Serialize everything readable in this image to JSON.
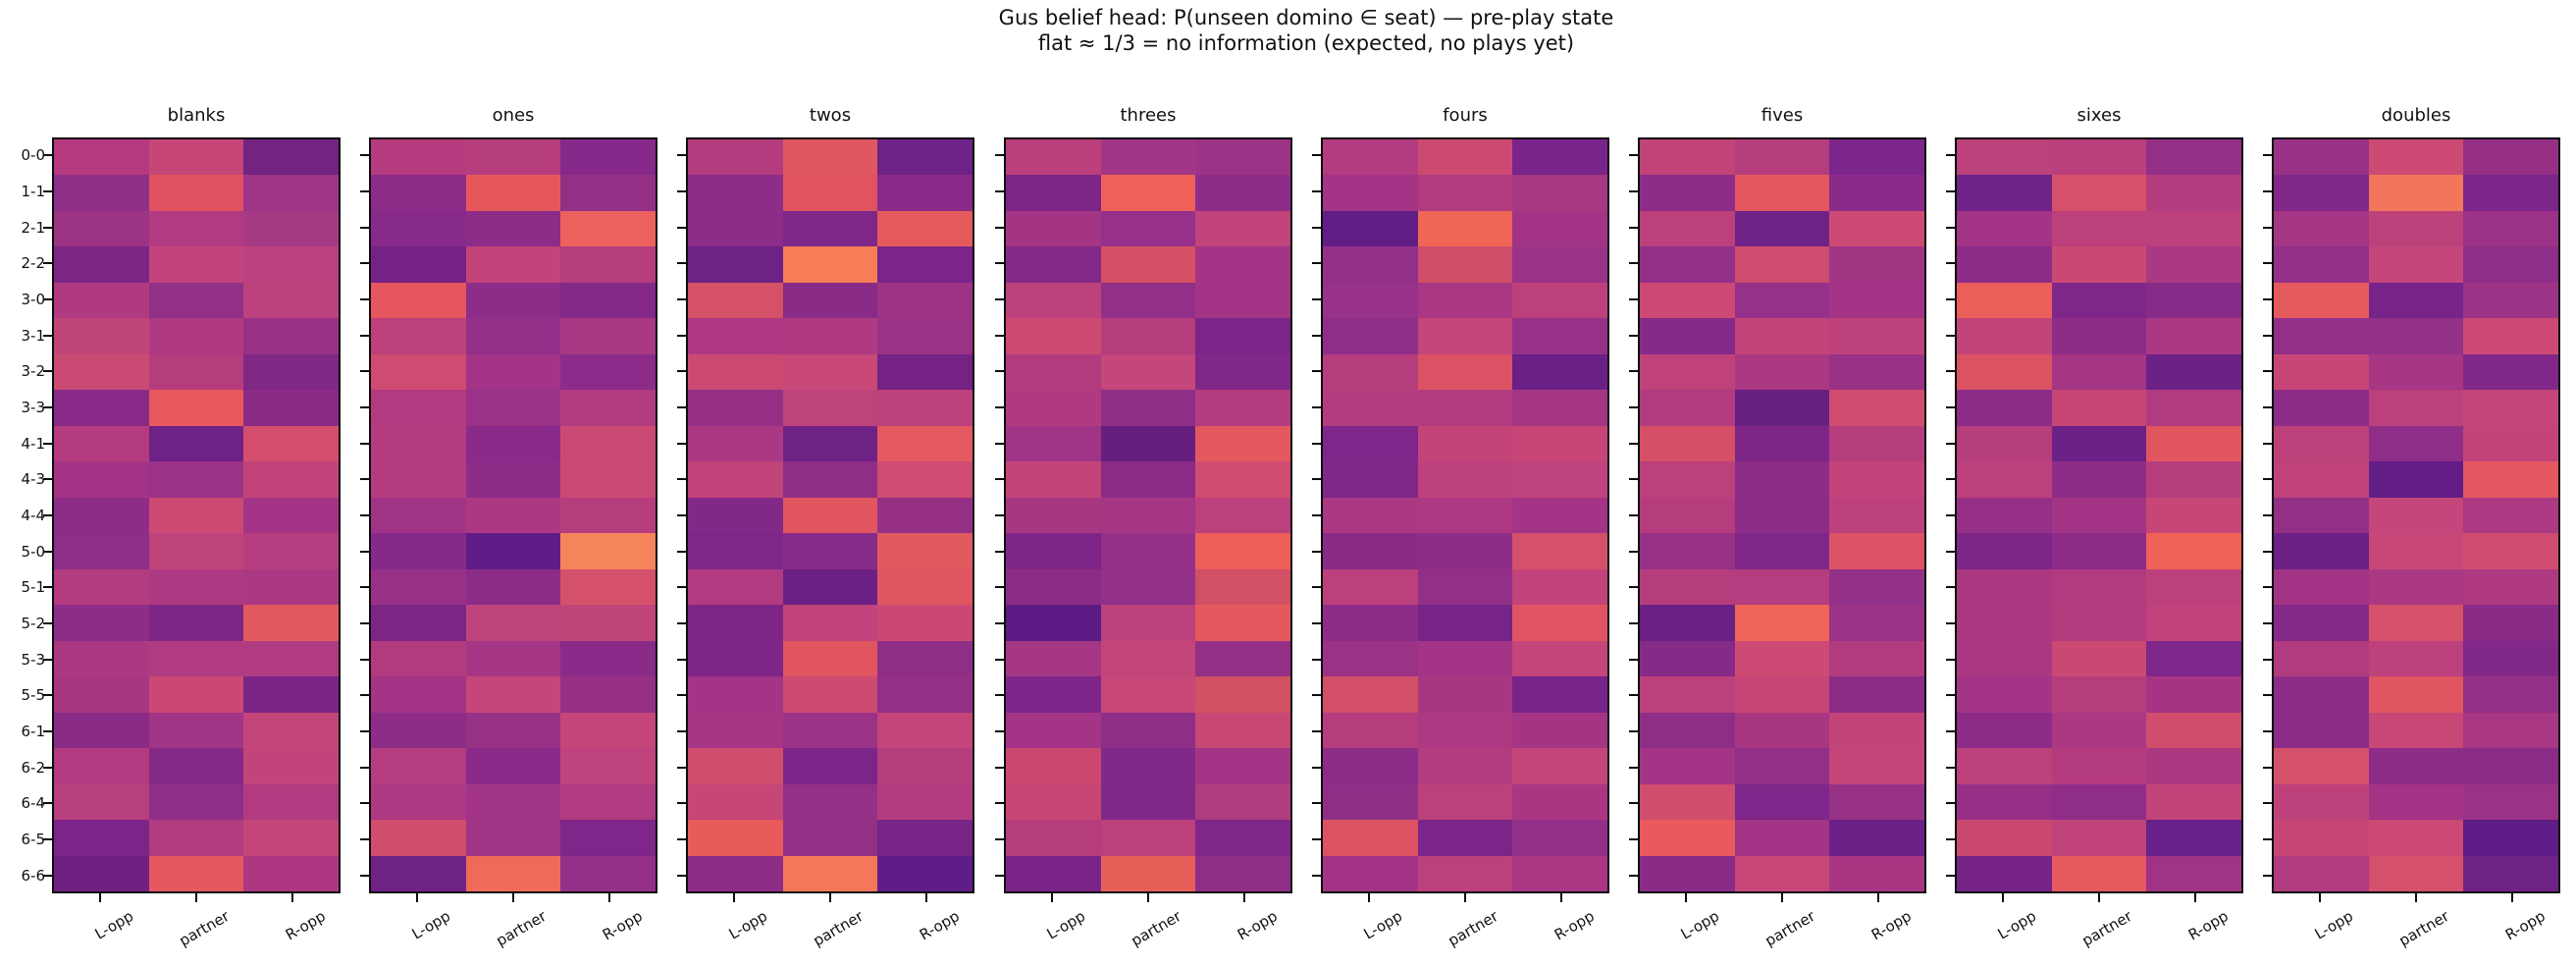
{
  "chart_data": {
    "type": "heatmap",
    "title": "Gus belief head: P(unseen domino ∈ seat) — pre-play state",
    "subtitle": "flat ≈ 1/3 = no information (expected, no plays yet)",
    "colormap": "plasma",
    "value_encoding": "probability encoded by cell color only; no colorbar shown; values all near 1/3",
    "rows": [
      "0-0",
      "1-1",
      "2-1",
      "2-2",
      "3-0",
      "3-1",
      "3-2",
      "3-3",
      "4-1",
      "4-3",
      "4-4",
      "5-0",
      "5-1",
      "5-2",
      "5-3",
      "5-5",
      "6-1",
      "6-2",
      "6-4",
      "6-5",
      "6-6"
    ],
    "cols": [
      "L-opp",
      "partner",
      "R-opp"
    ],
    "panels": [
      {
        "title": "blanks",
        "cells": [
          [
            "#b5397f",
            "#c74678",
            "#732481"
          ],
          [
            "#8f2f88",
            "#e05261",
            "#a03487"
          ],
          [
            "#9c3384",
            "#b23a80",
            "#a63a85"
          ],
          [
            "#7c2583",
            "#c2437b",
            "#bb4180"
          ],
          [
            "#b03a82",
            "#922f87",
            "#bc427e"
          ],
          [
            "#c04579",
            "#af3a81",
            "#993186"
          ],
          [
            "#c94b74",
            "#b53d7e",
            "#7f2886"
          ],
          [
            "#8a2a88",
            "#e8585c",
            "#8a2a87"
          ],
          [
            "#b43b7f",
            "#6e2187",
            "#d44d6c"
          ],
          [
            "#a33485",
            "#9b3287",
            "#c24379"
          ],
          [
            "#8e2d88",
            "#cc4a72",
            "#a33485"
          ],
          [
            "#8e2e88",
            "#bf437b",
            "#b53c7e"
          ],
          [
            "#b33b7f",
            "#ad3982",
            "#ab3883"
          ],
          [
            "#8d2d88",
            "#7d2685",
            "#e25a5e"
          ],
          [
            "#ab3883",
            "#b13b81",
            "#b13b81"
          ],
          [
            "#a83781",
            "#ca4873",
            "#7a2586"
          ],
          [
            "#8a2b88",
            "#a13486",
            "#c4457a"
          ],
          [
            "#b23a80",
            "#842a86",
            "#c3447a"
          ],
          [
            "#b83f7d",
            "#8e2e88",
            "#b23a81"
          ],
          [
            "#7c2487",
            "#b23c80",
            "#c44579"
          ],
          [
            "#6e2181",
            "#e5585f",
            "#ad3781"
          ]
        ]
      },
      {
        "title": "ones",
        "cells": [
          [
            "#b53b7e",
            "#b63d7e",
            "#86298a"
          ],
          [
            "#8c2c89",
            "#e6575c",
            "#933085"
          ],
          [
            "#872a8a",
            "#8c2c88",
            "#ec615e"
          ],
          [
            "#742385",
            "#c2447a",
            "#b53d7e"
          ],
          [
            "#e6565e",
            "#8e2d89",
            "#852988"
          ],
          [
            "#bc417b",
            "#93308a",
            "#a83784"
          ],
          [
            "#ce4c72",
            "#a33488",
            "#8c2b8a"
          ],
          [
            "#b13a80",
            "#9b3287",
            "#b23b80"
          ],
          [
            "#b23c7f",
            "#8a2a8a",
            "#cb4a74"
          ],
          [
            "#b23c7f",
            "#8e2d89",
            "#cb4a74"
          ],
          [
            "#a03386",
            "#ad3882",
            "#b63d7d"
          ],
          [
            "#862a89",
            "#5f1d87",
            "#f4845a"
          ],
          [
            "#983186",
            "#8c2c89",
            "#d5506a"
          ],
          [
            "#7b2685",
            "#bf437b",
            "#c04579"
          ],
          [
            "#b23b80",
            "#a53685",
            "#8b2b89"
          ],
          [
            "#a33486",
            "#c4467a",
            "#963085"
          ],
          [
            "#8d2d87",
            "#963186",
            "#c4457a"
          ],
          [
            "#b43c7f",
            "#8b2b89",
            "#bf437c"
          ],
          [
            "#ad3982",
            "#a13486",
            "#b13b80"
          ],
          [
            "#d14d6e",
            "#a13485",
            "#7e2689"
          ],
          [
            "#6f2286",
            "#ef6b57",
            "#95308a"
          ]
        ]
      },
      {
        "title": "twos",
        "cells": [
          [
            "#b43c7e",
            "#e15760",
            "#6e2186"
          ],
          [
            "#8e2d89",
            "#e05460",
            "#892a88"
          ],
          [
            "#8d2c89",
            "#7f2789",
            "#e65a5d"
          ],
          [
            "#6f2286",
            "#f67d56",
            "#7c2489"
          ],
          [
            "#d55165",
            "#8a2b88",
            "#9e3386"
          ],
          [
            "#ae3982",
            "#b03a81",
            "#9b3286"
          ],
          [
            "#cc4a72",
            "#c84878",
            "#742384"
          ],
          [
            "#963085",
            "#bf437b",
            "#bd417c"
          ],
          [
            "#aa3883",
            "#6f2285",
            "#e55960"
          ],
          [
            "#c0437a",
            "#8e2e87",
            "#cf4b72"
          ],
          [
            "#822988",
            "#e05560",
            "#963085"
          ],
          [
            "#7f2789",
            "#882a89",
            "#e15a5e"
          ],
          [
            "#b23a80",
            "#6c2086",
            "#df5560"
          ],
          [
            "#7c2587",
            "#c0447b",
            "#cc4874"
          ],
          [
            "#7e2688",
            "#e0555f",
            "#8f2e87"
          ],
          [
            "#a33486",
            "#cd4a73",
            "#933085"
          ],
          [
            "#a63685",
            "#9c3286",
            "#c4457a"
          ],
          [
            "#d04d6e",
            "#7c2588",
            "#b53d7e"
          ],
          [
            "#c64677",
            "#943085",
            "#b43c7e"
          ],
          [
            "#e85b5b",
            "#933085",
            "#762486"
          ],
          [
            "#8d2c87",
            "#f4775a",
            "#5f1d87"
          ]
        ]
      },
      {
        "title": "threes",
        "cells": [
          [
            "#bb3f7c",
            "#a33586",
            "#9c3387"
          ],
          [
            "#7c2587",
            "#ee6158",
            "#8e2d88"
          ],
          [
            "#a43585",
            "#97308a",
            "#c1447a"
          ],
          [
            "#842988",
            "#d55064",
            "#a33486"
          ],
          [
            "#bd417b",
            "#923089",
            "#a43486"
          ],
          [
            "#cc4971",
            "#b53d7e",
            "#7b2588"
          ],
          [
            "#b23b80",
            "#c4467a",
            "#812789"
          ],
          [
            "#b03a80",
            "#8e2e87",
            "#b43c7e"
          ],
          [
            "#a13486",
            "#65207f",
            "#e5585f"
          ],
          [
            "#c24479",
            "#8c2c87",
            "#d04c70"
          ],
          [
            "#a83782",
            "#a53685",
            "#bb407b"
          ],
          [
            "#7e2688",
            "#943089",
            "#ed5e59"
          ],
          [
            "#8d2c87",
            "#933089",
            "#d25064"
          ],
          [
            "#5c1a84",
            "#bc417c",
            "#e5585e"
          ],
          [
            "#a53684",
            "#c3457a",
            "#933086"
          ],
          [
            "#7e2589",
            "#c64778",
            "#d25162"
          ],
          [
            "#a33486",
            "#8f2e87",
            "#c84875"
          ],
          [
            "#cb4971",
            "#822888",
            "#a33486"
          ],
          [
            "#c64574",
            "#822888",
            "#b03d80"
          ],
          [
            "#b53d7e",
            "#bb407c",
            "#7f2689"
          ],
          [
            "#7a2488",
            "#e75f59",
            "#8e2e87"
          ]
        ]
      },
      {
        "title": "fours",
        "cells": [
          [
            "#b23c7f",
            "#cc4a72",
            "#78248a"
          ],
          [
            "#a33486",
            "#b23b80",
            "#a83784"
          ],
          [
            "#611e86",
            "#ef6656",
            "#a33485"
          ],
          [
            "#933089",
            "#d04e6a",
            "#9a3288"
          ],
          [
            "#973189",
            "#a93784",
            "#bc407b"
          ],
          [
            "#8f2e89",
            "#c4457a",
            "#963187"
          ],
          [
            "#b53d7e",
            "#db5264",
            "#6b2088"
          ],
          [
            "#b33c7f",
            "#b23b80",
            "#a53685"
          ],
          [
            "#7e2689",
            "#c34479",
            "#c74677"
          ],
          [
            "#812789",
            "#bc417c",
            "#be427b"
          ],
          [
            "#ab3883",
            "#ad3982",
            "#a33486"
          ],
          [
            "#8a2b87",
            "#8d2d88",
            "#d5506a"
          ],
          [
            "#bc407b",
            "#923088",
            "#c3447b"
          ],
          [
            "#8e2d87",
            "#762487",
            "#e05464"
          ],
          [
            "#9b3286",
            "#a33486",
            "#c4467a"
          ],
          [
            "#d34f68",
            "#a83783",
            "#762489"
          ],
          [
            "#b53d7e",
            "#ad3982",
            "#a53584"
          ],
          [
            "#8c2c88",
            "#b33c80",
            "#c3457a"
          ],
          [
            "#8f2e87",
            "#bb407c",
            "#a83682"
          ],
          [
            "#db5362",
            "#7b2589",
            "#923089"
          ],
          [
            "#a33485",
            "#bb407c",
            "#a93783"
          ]
        ]
      },
      {
        "title": "fives",
        "cells": [
          [
            "#c04478",
            "#b53d7e",
            "#7c258a"
          ],
          [
            "#8e2d88",
            "#e5575e",
            "#8b2b89"
          ],
          [
            "#bb407b",
            "#6e2287",
            "#cc4a73"
          ],
          [
            "#933089",
            "#ce4c70",
            "#a33585"
          ],
          [
            "#cb4973",
            "#963189",
            "#a33486"
          ],
          [
            "#862a89",
            "#c24478",
            "#bd427b"
          ],
          [
            "#bf427a",
            "#ab3883",
            "#993186"
          ],
          [
            "#b23b80",
            "#67207f",
            "#d04d6f"
          ],
          [
            "#d55066",
            "#7d2687",
            "#b53d7e"
          ],
          [
            "#bc407c",
            "#8b2c87",
            "#c3447a"
          ],
          [
            "#b53d7e",
            "#8c2c87",
            "#bc417c"
          ],
          [
            "#973186",
            "#7f2788",
            "#db5364"
          ],
          [
            "#b63d7d",
            "#b43c7f",
            "#933088"
          ],
          [
            "#6b2086",
            "#ee6457",
            "#9a3286"
          ],
          [
            "#862a88",
            "#cc4a73",
            "#b23b80"
          ],
          [
            "#bb407b",
            "#c74677",
            "#8c2c88"
          ],
          [
            "#8e2e87",
            "#a83782",
            "#c24479"
          ],
          [
            "#a33486",
            "#923088",
            "#c4457a"
          ],
          [
            "#d04d6d",
            "#7e2689",
            "#963186"
          ],
          [
            "#e85a5c",
            "#a43486",
            "#6b2087"
          ],
          [
            "#8a2b88",
            "#c74878",
            "#a83683"
          ]
        ]
      },
      {
        "title": "sixes",
        "cells": [
          [
            "#bc417b",
            "#bb3f7c",
            "#933085"
          ],
          [
            "#6f2287",
            "#d5506a",
            "#b33c7f"
          ],
          [
            "#a33486",
            "#bb407c",
            "#bc407b"
          ],
          [
            "#8d2c89",
            "#ca4973",
            "#ab3882"
          ],
          [
            "#ea5f59",
            "#7f2789",
            "#882a88"
          ],
          [
            "#c24479",
            "#8e2d88",
            "#a93783"
          ],
          [
            "#db5363",
            "#a53585",
            "#6c2187"
          ],
          [
            "#8c2c88",
            "#c74677",
            "#b23b80"
          ],
          [
            "#b73e7d",
            "#6c2187",
            "#e1555f"
          ],
          [
            "#bc407b",
            "#8e2d87",
            "#b63d7e"
          ],
          [
            "#963086",
            "#a33486",
            "#c64677"
          ],
          [
            "#7e2688",
            "#8c2c88",
            "#ef6156"
          ],
          [
            "#ad3882",
            "#b23b80",
            "#bb407b"
          ],
          [
            "#ad3882",
            "#b33c7f",
            "#bf427a"
          ],
          [
            "#ab3883",
            "#ca4973",
            "#7e2689"
          ],
          [
            "#a33486",
            "#b53d7e",
            "#a53584"
          ],
          [
            "#8c2c88",
            "#aa3883",
            "#d04d6e"
          ],
          [
            "#bc417b",
            "#b43c7e",
            "#ad3882"
          ],
          [
            "#953086",
            "#8f2e88",
            "#c24479"
          ],
          [
            "#cb4971",
            "#c0437a",
            "#6a2089"
          ],
          [
            "#762386",
            "#e55a5d",
            "#a03386"
          ]
        ]
      },
      {
        "title": "doubles",
        "cells": [
          [
            "#993286",
            "#cc4a73",
            "#953085"
          ],
          [
            "#82288a",
            "#f2765b",
            "#7d268a"
          ],
          [
            "#a53685",
            "#bc417b",
            "#9b3287"
          ],
          [
            "#933089",
            "#c5467a",
            "#8f2e88"
          ],
          [
            "#e55a5d",
            "#762489",
            "#9c3387"
          ],
          [
            "#923089",
            "#933088",
            "#cb4973"
          ],
          [
            "#c74677",
            "#a73684",
            "#812789"
          ],
          [
            "#8d2d88",
            "#bb407c",
            "#c4457a"
          ],
          [
            "#bc417b",
            "#8e2e88",
            "#c24479"
          ],
          [
            "#bf427a",
            "#621e86",
            "#e25760"
          ],
          [
            "#933086",
            "#c4467a",
            "#ad3982"
          ],
          [
            "#6d2186",
            "#c74878",
            "#d04d70"
          ],
          [
            "#a33485",
            "#ab3882",
            "#b03a81"
          ],
          [
            "#862a89",
            "#d6516a",
            "#8a2b88"
          ],
          [
            "#b23b80",
            "#bc417c",
            "#822888"
          ],
          [
            "#8e2d88",
            "#df5562",
            "#933088"
          ],
          [
            "#8c2c88",
            "#c74877",
            "#a93783"
          ],
          [
            "#d4506b",
            "#8e2d89",
            "#8c2c88"
          ],
          [
            "#bd427b",
            "#a33486",
            "#9c3286"
          ],
          [
            "#c74677",
            "#cb4974",
            "#5e1c86"
          ],
          [
            "#b23b7f",
            "#d5506b",
            "#6f2286"
          ]
        ]
      }
    ]
  }
}
